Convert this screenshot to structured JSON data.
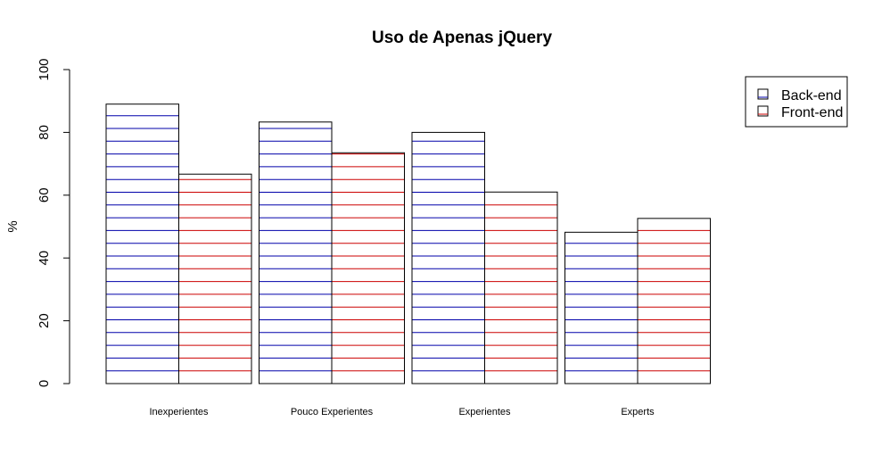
{
  "chart_data": {
    "type": "bar",
    "title": "Uso de Apenas jQuery",
    "xlabel": "",
    "ylabel": "%",
    "ylim": [
      0,
      100
    ],
    "yticks": [
      0,
      20,
      40,
      60,
      80,
      100
    ],
    "categories": [
      "Inexperientes",
      "Pouco Experientes",
      "Experientes",
      "Experts"
    ],
    "series": [
      {
        "name": "Back-end",
        "values": [
          89,
          83.3,
          80,
          48.2
        ],
        "color": "#0000aa"
      },
      {
        "name": "Front-end",
        "values": [
          66.7,
          73.5,
          61,
          52.6
        ],
        "color": "#cc0000"
      }
    ],
    "fill_style": "horizontal-lines",
    "grid": false,
    "legend_position": "top-right"
  }
}
